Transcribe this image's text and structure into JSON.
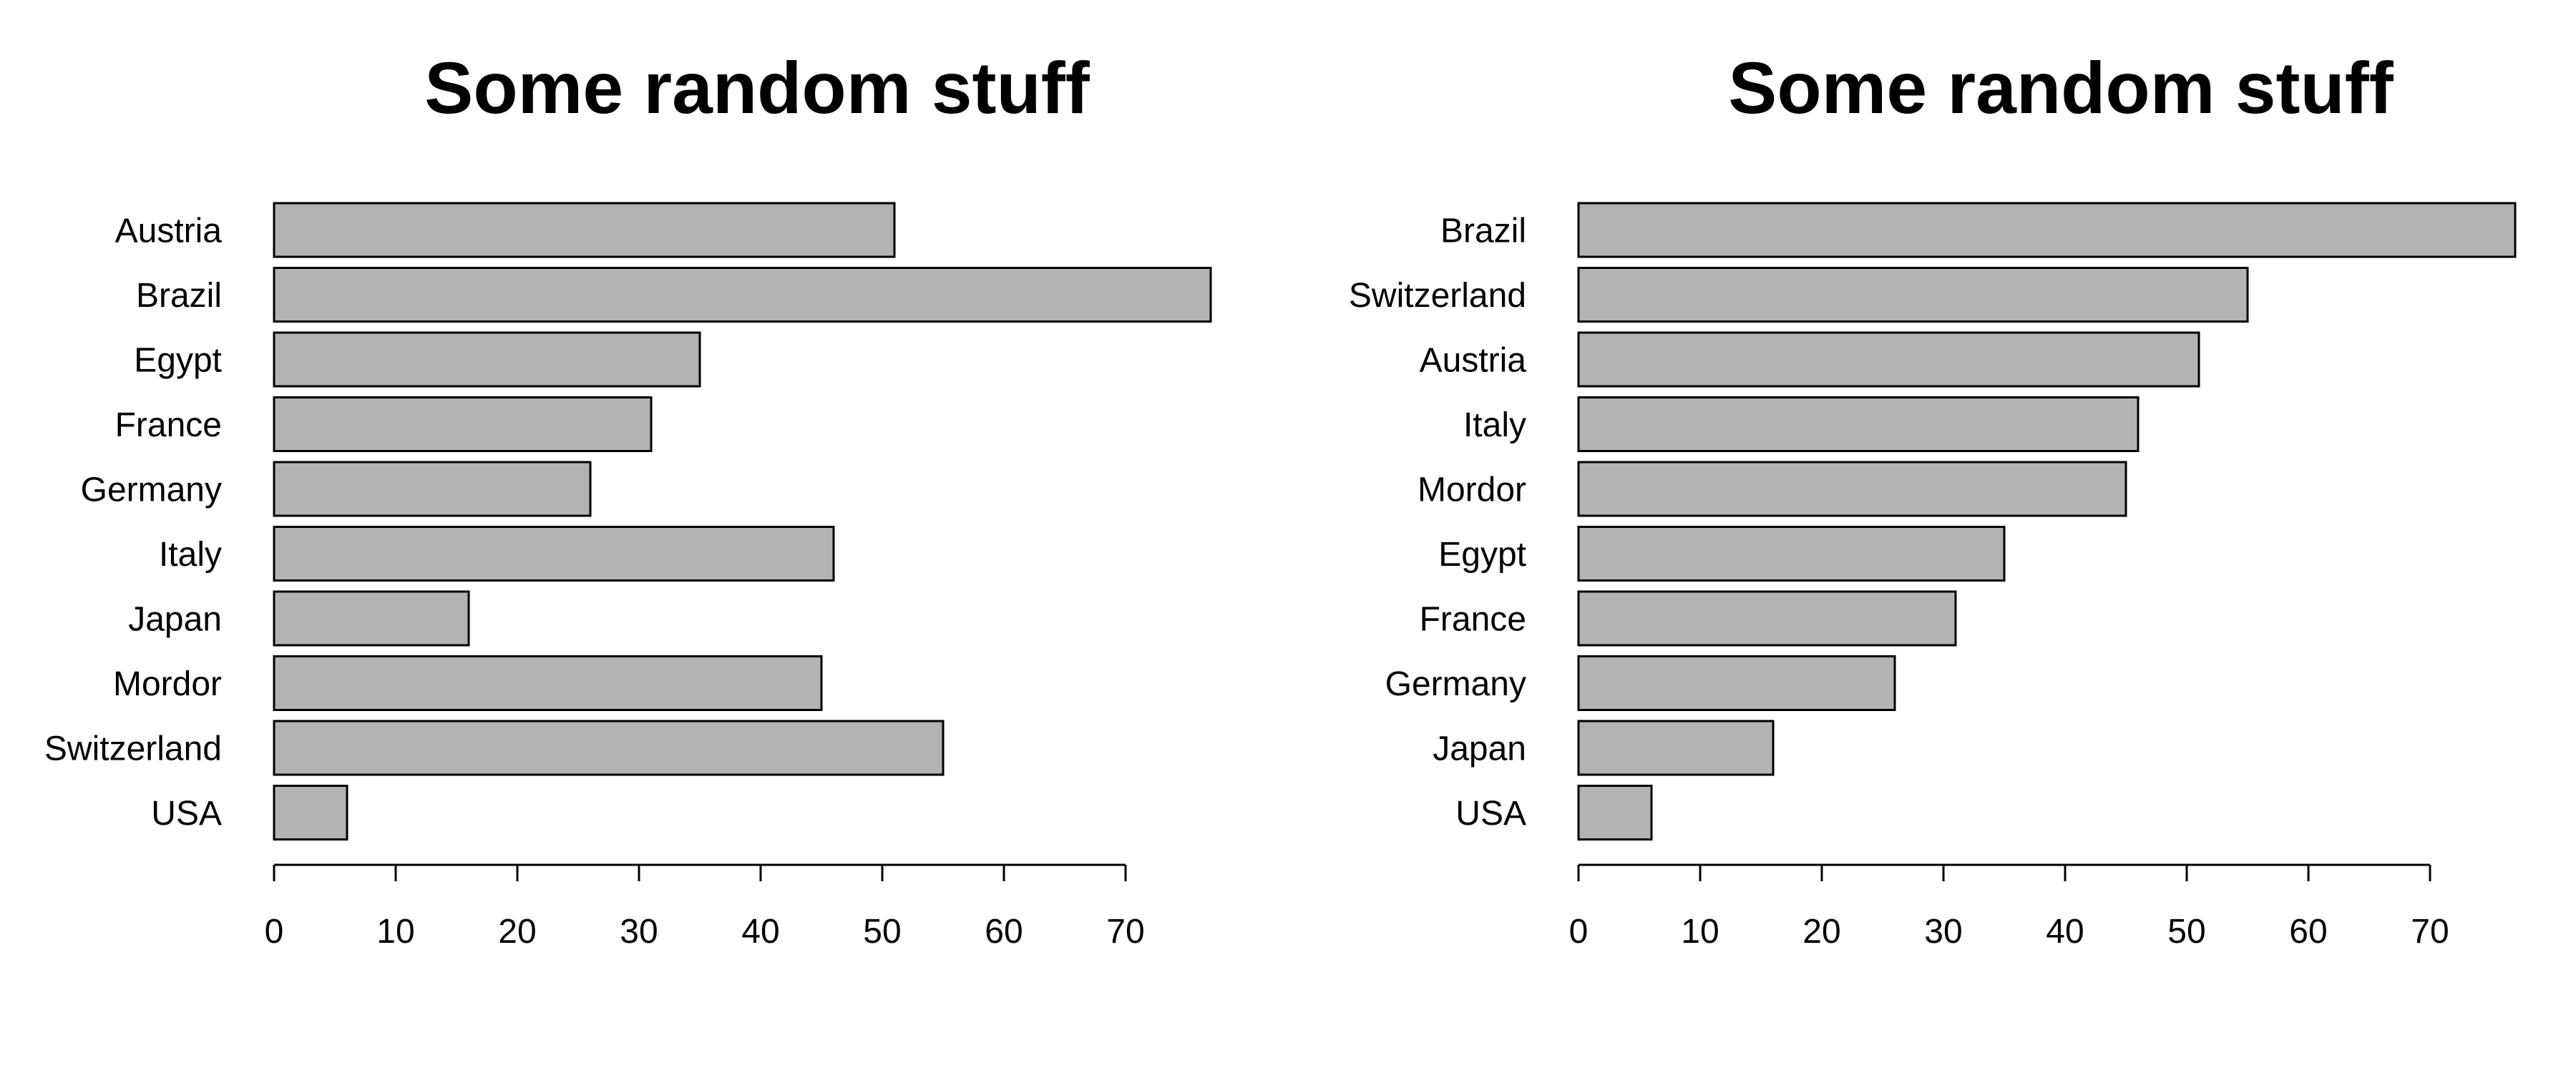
{
  "chart_data": [
    {
      "type": "bar",
      "orientation": "horizontal",
      "title": "Some random stuff",
      "categories": [
        "Austria",
        "Brazil",
        "Egypt",
        "France",
        "Germany",
        "Italy",
        "Japan",
        "Mordor",
        "Switzerland",
        "USA"
      ],
      "values": [
        51,
        77,
        35,
        31,
        26,
        46,
        16,
        45,
        55,
        6
      ],
      "xlim": [
        0,
        77
      ],
      "xticks": [
        0,
        10,
        20,
        30,
        40,
        50,
        60,
        70
      ],
      "xlabel": "",
      "ylabel": "",
      "grid": false,
      "bar_color": "#b3b3b3",
      "bar_edge_color": "#000000"
    },
    {
      "type": "bar",
      "orientation": "horizontal",
      "title": "Some random stuff",
      "categories": [
        "Brazil",
        "Switzerland",
        "Austria",
        "Italy",
        "Mordor",
        "Egypt",
        "France",
        "Germany",
        "Japan",
        "USA"
      ],
      "values": [
        77,
        55,
        51,
        46,
        45,
        35,
        31,
        26,
        16,
        6
      ],
      "xlim": [
        0,
        77
      ],
      "xticks": [
        0,
        10,
        20,
        30,
        40,
        50,
        60,
        70
      ],
      "xlabel": "",
      "ylabel": "",
      "grid": false,
      "bar_color": "#b3b3b3",
      "bar_edge_color": "#000000"
    }
  ]
}
